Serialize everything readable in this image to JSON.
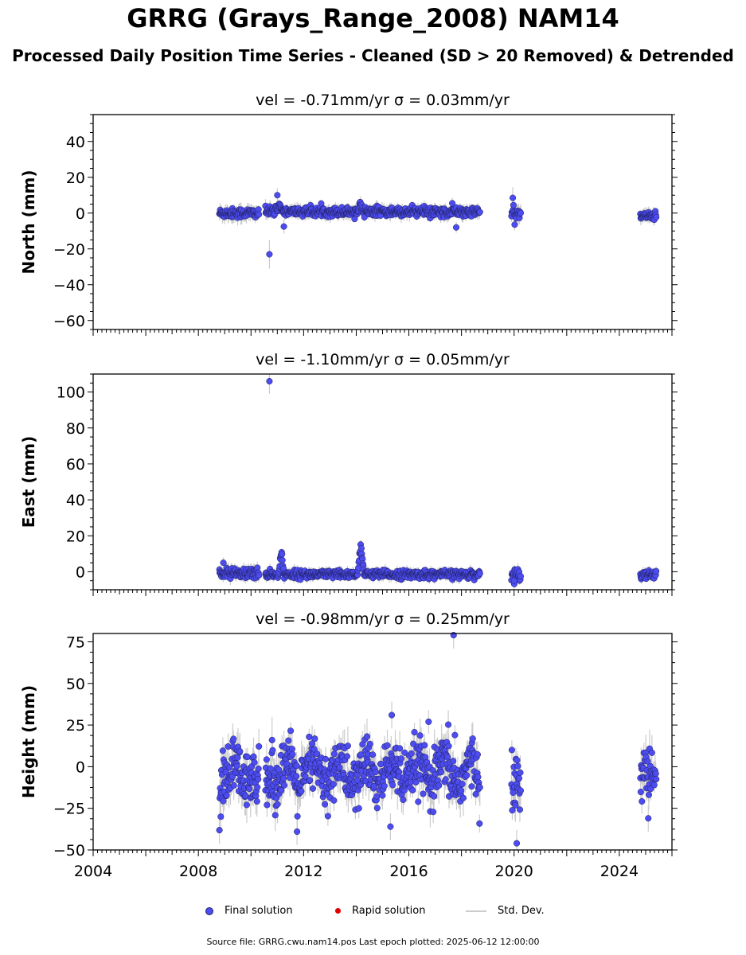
{
  "title": "GRRG (Grays_Range_2008) NAM14",
  "subtitle": "Processed Daily Position Time Series - Cleaned (SD > 20 Removed) & Detrended",
  "colors": {
    "final": "#4c4cf0",
    "final_edge": "#202060",
    "rapid": "#e00000",
    "std": "#cccccc"
  },
  "legend": {
    "final": "Final solution",
    "rapid": "Rapid solution",
    "std": "Std. Dev."
  },
  "footer": "Source file: GRRG.cwu.nam14.pos  Last epoch plotted: 2025-06-12 12:00:00",
  "chart_data": [
    {
      "type": "scatter",
      "title": "vel = -0.71mm/yr   σ = 0.03mm/yr",
      "ylabel": "North (mm)",
      "xlabel": "",
      "xlim": [
        2004,
        2026
      ],
      "ylim": [
        -65,
        55
      ],
      "yticks": [
        -60,
        -40,
        -20,
        0,
        20,
        40
      ],
      "ytick_labels": [
        "−60",
        "−40",
        "−20",
        "0",
        "20",
        "40"
      ],
      "segments": [
        {
          "x_start": 2008.8,
          "x_end": 2010.3,
          "mean": 0,
          "spread": 1.3,
          "std": 3.5
        },
        {
          "x_start": 2010.55,
          "x_end": 2018.7,
          "mean": 0.8,
          "spread": 1.2,
          "std": 3
        },
        {
          "x_start": 2019.9,
          "x_end": 2020.25,
          "mean": 0,
          "spread": 1.6,
          "std": 4
        },
        {
          "x_start": 2024.8,
          "x_end": 2025.4,
          "mean": -1.5,
          "spread": 1,
          "std": 3
        }
      ],
      "bumps": [
        {
          "x_start": 2010.9,
          "x_end": 2011.25,
          "amp": 4
        },
        {
          "x_start": 2014.05,
          "x_end": 2014.25,
          "amp": 6
        }
      ],
      "outliers": [
        {
          "x": 2010.7,
          "y": -23,
          "std": 8
        },
        {
          "x": 2011.25,
          "y": -7.5,
          "std": 4
        },
        {
          "x": 2019.95,
          "y": 8.5,
          "std": 6
        },
        {
          "x": 2017.8,
          "y": -8,
          "std": 3
        },
        {
          "x": 2017.65,
          "y": 5.5,
          "std": 3
        },
        {
          "x": 2011.0,
          "y": 10,
          "std": 4
        }
      ]
    },
    {
      "type": "scatter",
      "title": "vel = -1.10mm/yr   σ = 0.05mm/yr",
      "ylabel": "East (mm)",
      "xlabel": "",
      "xlim": [
        2004,
        2026
      ],
      "ylim": [
        -10,
        110
      ],
      "yticks": [
        0,
        20,
        40,
        60,
        80,
        100
      ],
      "ytick_labels": [
        "0",
        "20",
        "40",
        "60",
        "80",
        "100"
      ],
      "segments": [
        {
          "x_start": 2008.8,
          "x_end": 2010.3,
          "mean": -1,
          "spread": 1.5,
          "std": 3
        },
        {
          "x_start": 2010.55,
          "x_end": 2018.7,
          "mean": -1.5,
          "spread": 1.1,
          "std": 2.5
        },
        {
          "x_start": 2019.9,
          "x_end": 2020.25,
          "mean": -1.5,
          "spread": 1.6,
          "std": 3.5
        },
        {
          "x_start": 2024.8,
          "x_end": 2025.4,
          "mean": -1.5,
          "spread": 1.2,
          "std": 2.5
        }
      ],
      "bumps": [
        {
          "x_start": 2011.05,
          "x_end": 2011.25,
          "amp": 15
        },
        {
          "x_start": 2014.05,
          "x_end": 2014.3,
          "amp": 19
        }
      ],
      "outliers": [
        {
          "x": 2010.7,
          "y": 106,
          "std": 7
        },
        {
          "x": 2008.95,
          "y": 5,
          "std": 3
        },
        {
          "x": 2020.0,
          "y": -5,
          "std": 4
        }
      ]
    },
    {
      "type": "scatter",
      "title": "vel = -0.98mm/yr   σ = 0.25mm/yr",
      "ylabel": "Height (mm)",
      "xlabel": "",
      "xlim": [
        2004,
        2026
      ],
      "ylim": [
        -50,
        80
      ],
      "yticks": [
        -50,
        -25,
        0,
        25,
        50,
        75
      ],
      "ytick_labels": [
        "−50",
        "−25",
        "0",
        "25",
        "50",
        "75"
      ],
      "xticks": [
        2004,
        2008,
        2012,
        2016,
        2020,
        2024
      ],
      "xtick_labels": [
        "2004",
        "2008",
        "2012",
        "2016",
        "2020",
        "2024"
      ],
      "segments": [
        {
          "x_start": 2008.8,
          "x_end": 2010.3,
          "mean": -6,
          "spread": 9,
          "std": 9,
          "season": 6
        },
        {
          "x_start": 2010.55,
          "x_end": 2018.7,
          "mean": -4,
          "spread": 8,
          "std": 9,
          "season": 7
        },
        {
          "x_start": 2019.9,
          "x_end": 2020.25,
          "mean": -10,
          "spread": 8,
          "std": 10,
          "season": 0
        },
        {
          "x_start": 2024.8,
          "x_end": 2025.4,
          "mean": -4,
          "spread": 7,
          "std": 9,
          "season": 0
        }
      ],
      "bumps": [],
      "outliers": [
        {
          "x": 2017.7,
          "y": 79,
          "std": 8
        },
        {
          "x": 2015.35,
          "y": 31,
          "std": 8
        },
        {
          "x": 2016.75,
          "y": 27,
          "std": 7
        },
        {
          "x": 2017.75,
          "y": 19,
          "std": 6
        },
        {
          "x": 2011.75,
          "y": -39,
          "std": 8
        },
        {
          "x": 2015.3,
          "y": -36,
          "std": 8
        },
        {
          "x": 2020.1,
          "y": -46,
          "std": 8
        },
        {
          "x": 2025.1,
          "y": -31,
          "std": 8
        },
        {
          "x": 2008.85,
          "y": -30,
          "std": 8
        },
        {
          "x": 2014.1,
          "y": -25,
          "std": 6
        },
        {
          "x": 2010.8,
          "y": 16,
          "std": 14
        }
      ]
    }
  ]
}
